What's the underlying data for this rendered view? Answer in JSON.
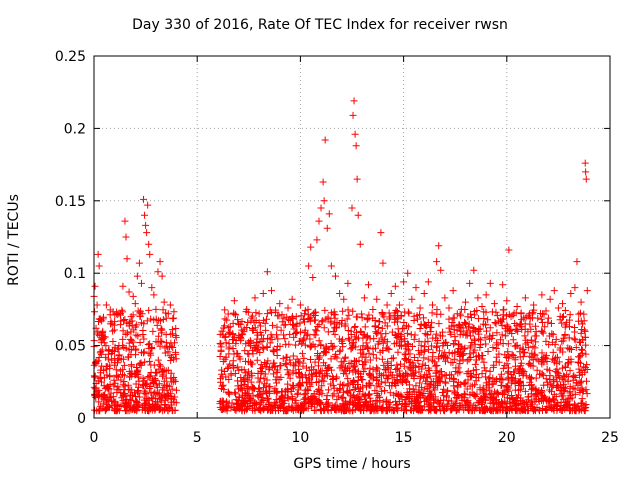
{
  "chart_data": {
    "type": "scatter",
    "title": "Day 330 of 2016, Rate Of TEC Index for receiver rwsn",
    "xlabel": "GPS time / hours",
    "ylabel": "ROTI / TECUs",
    "xlim": [
      0,
      25
    ],
    "ylim": [
      0,
      0.25
    ],
    "xticks": [
      "0",
      "5",
      "10",
      "15",
      "20",
      "25"
    ],
    "yticks": [
      "0",
      "0.05",
      "0.1",
      "0.15",
      "0.2",
      "0.25"
    ],
    "grid": true,
    "legend": "none",
    "marker": "+",
    "series_color": "#ff0000",
    "gap": [
      4.0,
      6.1
    ],
    "points": [
      [
        0.0,
        0.084
      ],
      [
        0.05,
        0.091
      ],
      [
        0.1,
        0.062
      ],
      [
        0.15,
        0.078
      ],
      [
        0.2,
        0.113
      ],
      [
        0.25,
        0.105
      ],
      [
        0.3,
        0.068
      ],
      [
        0.35,
        0.058
      ],
      [
        0.4,
        0.047
      ],
      [
        0.5,
        0.052
      ],
      [
        0.6,
        0.078
      ],
      [
        0.7,
        0.044
      ],
      [
        0.8,
        0.065
      ],
      [
        0.9,
        0.06
      ],
      [
        1.0,
        0.041
      ],
      [
        1.1,
        0.072
      ],
      [
        1.3,
        0.067
      ],
      [
        1.4,
        0.091
      ],
      [
        1.5,
        0.136
      ],
      [
        1.55,
        0.125
      ],
      [
        1.6,
        0.11
      ],
      [
        1.7,
        0.087
      ],
      [
        1.8,
        0.07
      ],
      [
        1.9,
        0.084
      ],
      [
        2.0,
        0.079
      ],
      [
        2.1,
        0.098
      ],
      [
        2.2,
        0.107
      ],
      [
        2.3,
        0.093
      ],
      [
        2.4,
        0.151
      ],
      [
        2.45,
        0.14
      ],
      [
        2.5,
        0.133
      ],
      [
        2.55,
        0.128
      ],
      [
        2.6,
        0.147
      ],
      [
        2.65,
        0.12
      ],
      [
        2.7,
        0.113
      ],
      [
        2.8,
        0.09
      ],
      [
        2.9,
        0.085
      ],
      [
        3.0,
        0.075
      ],
      [
        3.1,
        0.101
      ],
      [
        3.2,
        0.108
      ],
      [
        3.3,
        0.098
      ],
      [
        3.4,
        0.08
      ],
      [
        3.5,
        0.069
      ],
      [
        3.6,
        0.072
      ],
      [
        3.7,
        0.078
      ],
      [
        3.8,
        0.061
      ],
      [
        3.9,
        0.052
      ],
      [
        6.2,
        0.06
      ],
      [
        6.4,
        0.052
      ],
      [
        6.6,
        0.063
      ],
      [
        6.8,
        0.081
      ],
      [
        7.0,
        0.065
      ],
      [
        7.2,
        0.058
      ],
      [
        7.4,
        0.075
      ],
      [
        7.6,
        0.067
      ],
      [
        7.8,
        0.083
      ],
      [
        8.0,
        0.072
      ],
      [
        8.2,
        0.086
      ],
      [
        8.4,
        0.101
      ],
      [
        8.6,
        0.088
      ],
      [
        8.8,
        0.073
      ],
      [
        9.0,
        0.079
      ],
      [
        9.2,
        0.069
      ],
      [
        9.4,
        0.076
      ],
      [
        9.6,
        0.082
      ],
      [
        9.8,
        0.07
      ],
      [
        10.0,
        0.078
      ],
      [
        10.2,
        0.072
      ],
      [
        10.4,
        0.105
      ],
      [
        10.5,
        0.118
      ],
      [
        10.6,
        0.097
      ],
      [
        10.8,
        0.123
      ],
      [
        10.9,
        0.136
      ],
      [
        11.0,
        0.145
      ],
      [
        11.1,
        0.163
      ],
      [
        11.15,
        0.15
      ],
      [
        11.2,
        0.192
      ],
      [
        11.3,
        0.131
      ],
      [
        11.4,
        0.141
      ],
      [
        11.5,
        0.105
      ],
      [
        11.7,
        0.098
      ],
      [
        11.9,
        0.086
      ],
      [
        12.1,
        0.082
      ],
      [
        12.3,
        0.093
      ],
      [
        12.5,
        0.145
      ],
      [
        12.55,
        0.209
      ],
      [
        12.6,
        0.219
      ],
      [
        12.65,
        0.196
      ],
      [
        12.7,
        0.188
      ],
      [
        12.75,
        0.165
      ],
      [
        12.8,
        0.14
      ],
      [
        12.9,
        0.12
      ],
      [
        13.1,
        0.083
      ],
      [
        13.3,
        0.092
      ],
      [
        13.5,
        0.069
      ],
      [
        13.7,
        0.082
      ],
      [
        13.9,
        0.128
      ],
      [
        14.0,
        0.107
      ],
      [
        14.2,
        0.078
      ],
      [
        14.4,
        0.086
      ],
      [
        14.6,
        0.091
      ],
      [
        14.8,
        0.078
      ],
      [
        15.0,
        0.094
      ],
      [
        15.2,
        0.1
      ],
      [
        15.4,
        0.082
      ],
      [
        15.6,
        0.09
      ],
      [
        15.8,
        0.076
      ],
      [
        16.0,
        0.086
      ],
      [
        16.2,
        0.094
      ],
      [
        16.4,
        0.078
      ],
      [
        16.6,
        0.108
      ],
      [
        16.7,
        0.119
      ],
      [
        16.8,
        0.102
      ],
      [
        17.0,
        0.083
      ],
      [
        17.2,
        0.076
      ],
      [
        17.4,
        0.088
      ],
      [
        17.6,
        0.072
      ],
      [
        17.8,
        0.075
      ],
      [
        18.0,
        0.08
      ],
      [
        18.2,
        0.093
      ],
      [
        18.4,
        0.102
      ],
      [
        18.6,
        0.083
      ],
      [
        18.8,
        0.077
      ],
      [
        19.0,
        0.085
      ],
      [
        19.2,
        0.093
      ],
      [
        19.4,
        0.079
      ],
      [
        19.6,
        0.067
      ],
      [
        19.8,
        0.092
      ],
      [
        20.0,
        0.081
      ],
      [
        20.1,
        0.116
      ],
      [
        20.3,
        0.071
      ],
      [
        20.5,
        0.077
      ],
      [
        20.7,
        0.063
      ],
      [
        20.9,
        0.083
      ],
      [
        21.1,
        0.072
      ],
      [
        21.3,
        0.078
      ],
      [
        21.5,
        0.069
      ],
      [
        21.7,
        0.085
      ],
      [
        21.9,
        0.074
      ],
      [
        22.1,
        0.082
      ],
      [
        22.3,
        0.088
      ],
      [
        22.5,
        0.076
      ],
      [
        22.7,
        0.079
      ],
      [
        22.9,
        0.066
      ],
      [
        23.1,
        0.086
      ],
      [
        23.3,
        0.09
      ],
      [
        23.4,
        0.108
      ],
      [
        23.6,
        0.08
      ],
      [
        23.8,
        0.176
      ],
      [
        23.82,
        0.17
      ],
      [
        23.85,
        0.165
      ],
      [
        23.9,
        0.088
      ]
    ]
  }
}
